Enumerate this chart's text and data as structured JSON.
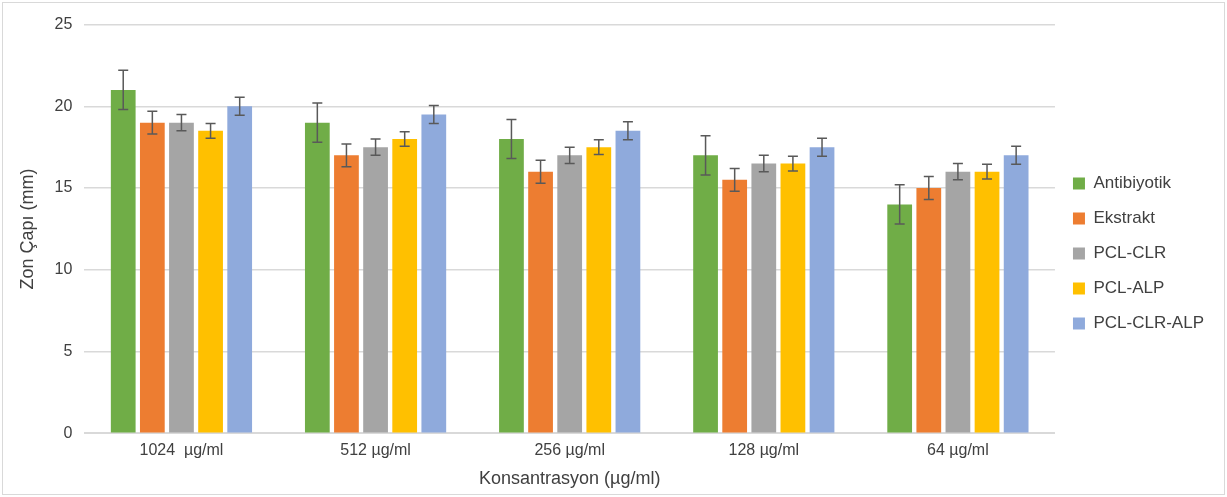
{
  "chart_data": {
    "type": "bar",
    "xlabel": "Konsantrasyon (µg/ml)",
    "ylabel": "Zon Çapı (mm)",
    "categories": [
      "1024  µg/ml",
      "512 µg/ml",
      "256 µg/ml",
      "128 µg/ml",
      "64 µg/ml"
    ],
    "series": [
      {
        "name": "Antibiyotik",
        "color": "#70ad47",
        "values": [
          21,
          19,
          18,
          17,
          14
        ],
        "errors": [
          1.2,
          1.2,
          1.2,
          1.2,
          1.2
        ]
      },
      {
        "name": "Ekstrakt",
        "color": "#ed7d31",
        "values": [
          19,
          17,
          16,
          15.5,
          15
        ],
        "errors": [
          0.7,
          0.7,
          0.7,
          0.7,
          0.7
        ]
      },
      {
        "name": "PCL-CLR",
        "color": "#a5a5a5",
        "values": [
          19,
          17.5,
          17,
          16.5,
          16
        ],
        "errors": [
          0.5,
          0.5,
          0.5,
          0.5,
          0.5
        ]
      },
      {
        "name": "PCL-ALP",
        "color": "#ffc000",
        "values": [
          18.5,
          18,
          17.5,
          16.5,
          16
        ],
        "errors": [
          0.45,
          0.45,
          0.45,
          0.45,
          0.45
        ]
      },
      {
        "name": "PCL-CLR-ALP",
        "color": "#8faadc",
        "values": [
          20,
          19.5,
          18.5,
          17.5,
          17
        ],
        "errors": [
          0.55,
          0.55,
          0.55,
          0.55,
          0.55
        ]
      }
    ],
    "ylim": [
      0,
      25
    ],
    "yticks": [
      0,
      5,
      10,
      15,
      20,
      25
    ],
    "grid": "y",
    "legend": "right"
  }
}
